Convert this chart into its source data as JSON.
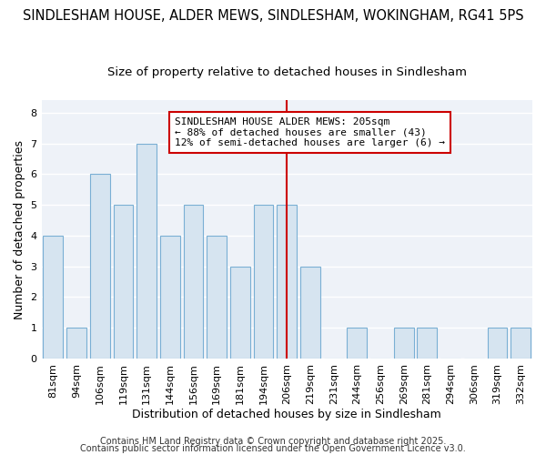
{
  "title1": "SINDLESHAM HOUSE, ALDER MEWS, SINDLESHAM, WOKINGHAM, RG41 5PS",
  "title2": "Size of property relative to detached houses in Sindlesham",
  "xlabel": "Distribution of detached houses by size in Sindlesham",
  "ylabel": "Number of detached properties",
  "categories": [
    "81sqm",
    "94sqm",
    "106sqm",
    "119sqm",
    "131sqm",
    "144sqm",
    "156sqm",
    "169sqm",
    "181sqm",
    "194sqm",
    "206sqm",
    "219sqm",
    "231sqm",
    "244sqm",
    "256sqm",
    "269sqm",
    "281sqm",
    "294sqm",
    "306sqm",
    "319sqm",
    "332sqm"
  ],
  "values": [
    4,
    1,
    6,
    5,
    7,
    4,
    5,
    4,
    3,
    5,
    5,
    3,
    0,
    1,
    0,
    1,
    1,
    0,
    0,
    1,
    1
  ],
  "bar_color": "#d6e4f0",
  "bar_edge_color": "#7aafd4",
  "vline_index": 10,
  "vline_color": "#cc0000",
  "annotation_text": "SINDLESHAM HOUSE ALDER MEWS: 205sqm\n← 88% of detached houses are smaller (43)\n12% of semi-detached houses are larger (6) →",
  "annotation_box_edge_color": "#cc0000",
  "background_color": "#ffffff",
  "plot_bg_color": "#eef2f8",
  "grid_color": "#ffffff",
  "ylim": [
    0,
    8.4
  ],
  "yticks": [
    0,
    1,
    2,
    3,
    4,
    5,
    6,
    7,
    8
  ],
  "footer1": "Contains HM Land Registry data © Crown copyright and database right 2025.",
  "footer2": "Contains public sector information licensed under the Open Government Licence v3.0.",
  "title1_fontsize": 10.5,
  "title2_fontsize": 9.5,
  "xlabel_fontsize": 9,
  "ylabel_fontsize": 9,
  "tick_fontsize": 8,
  "annotation_fontsize": 8,
  "footer_fontsize": 7
}
